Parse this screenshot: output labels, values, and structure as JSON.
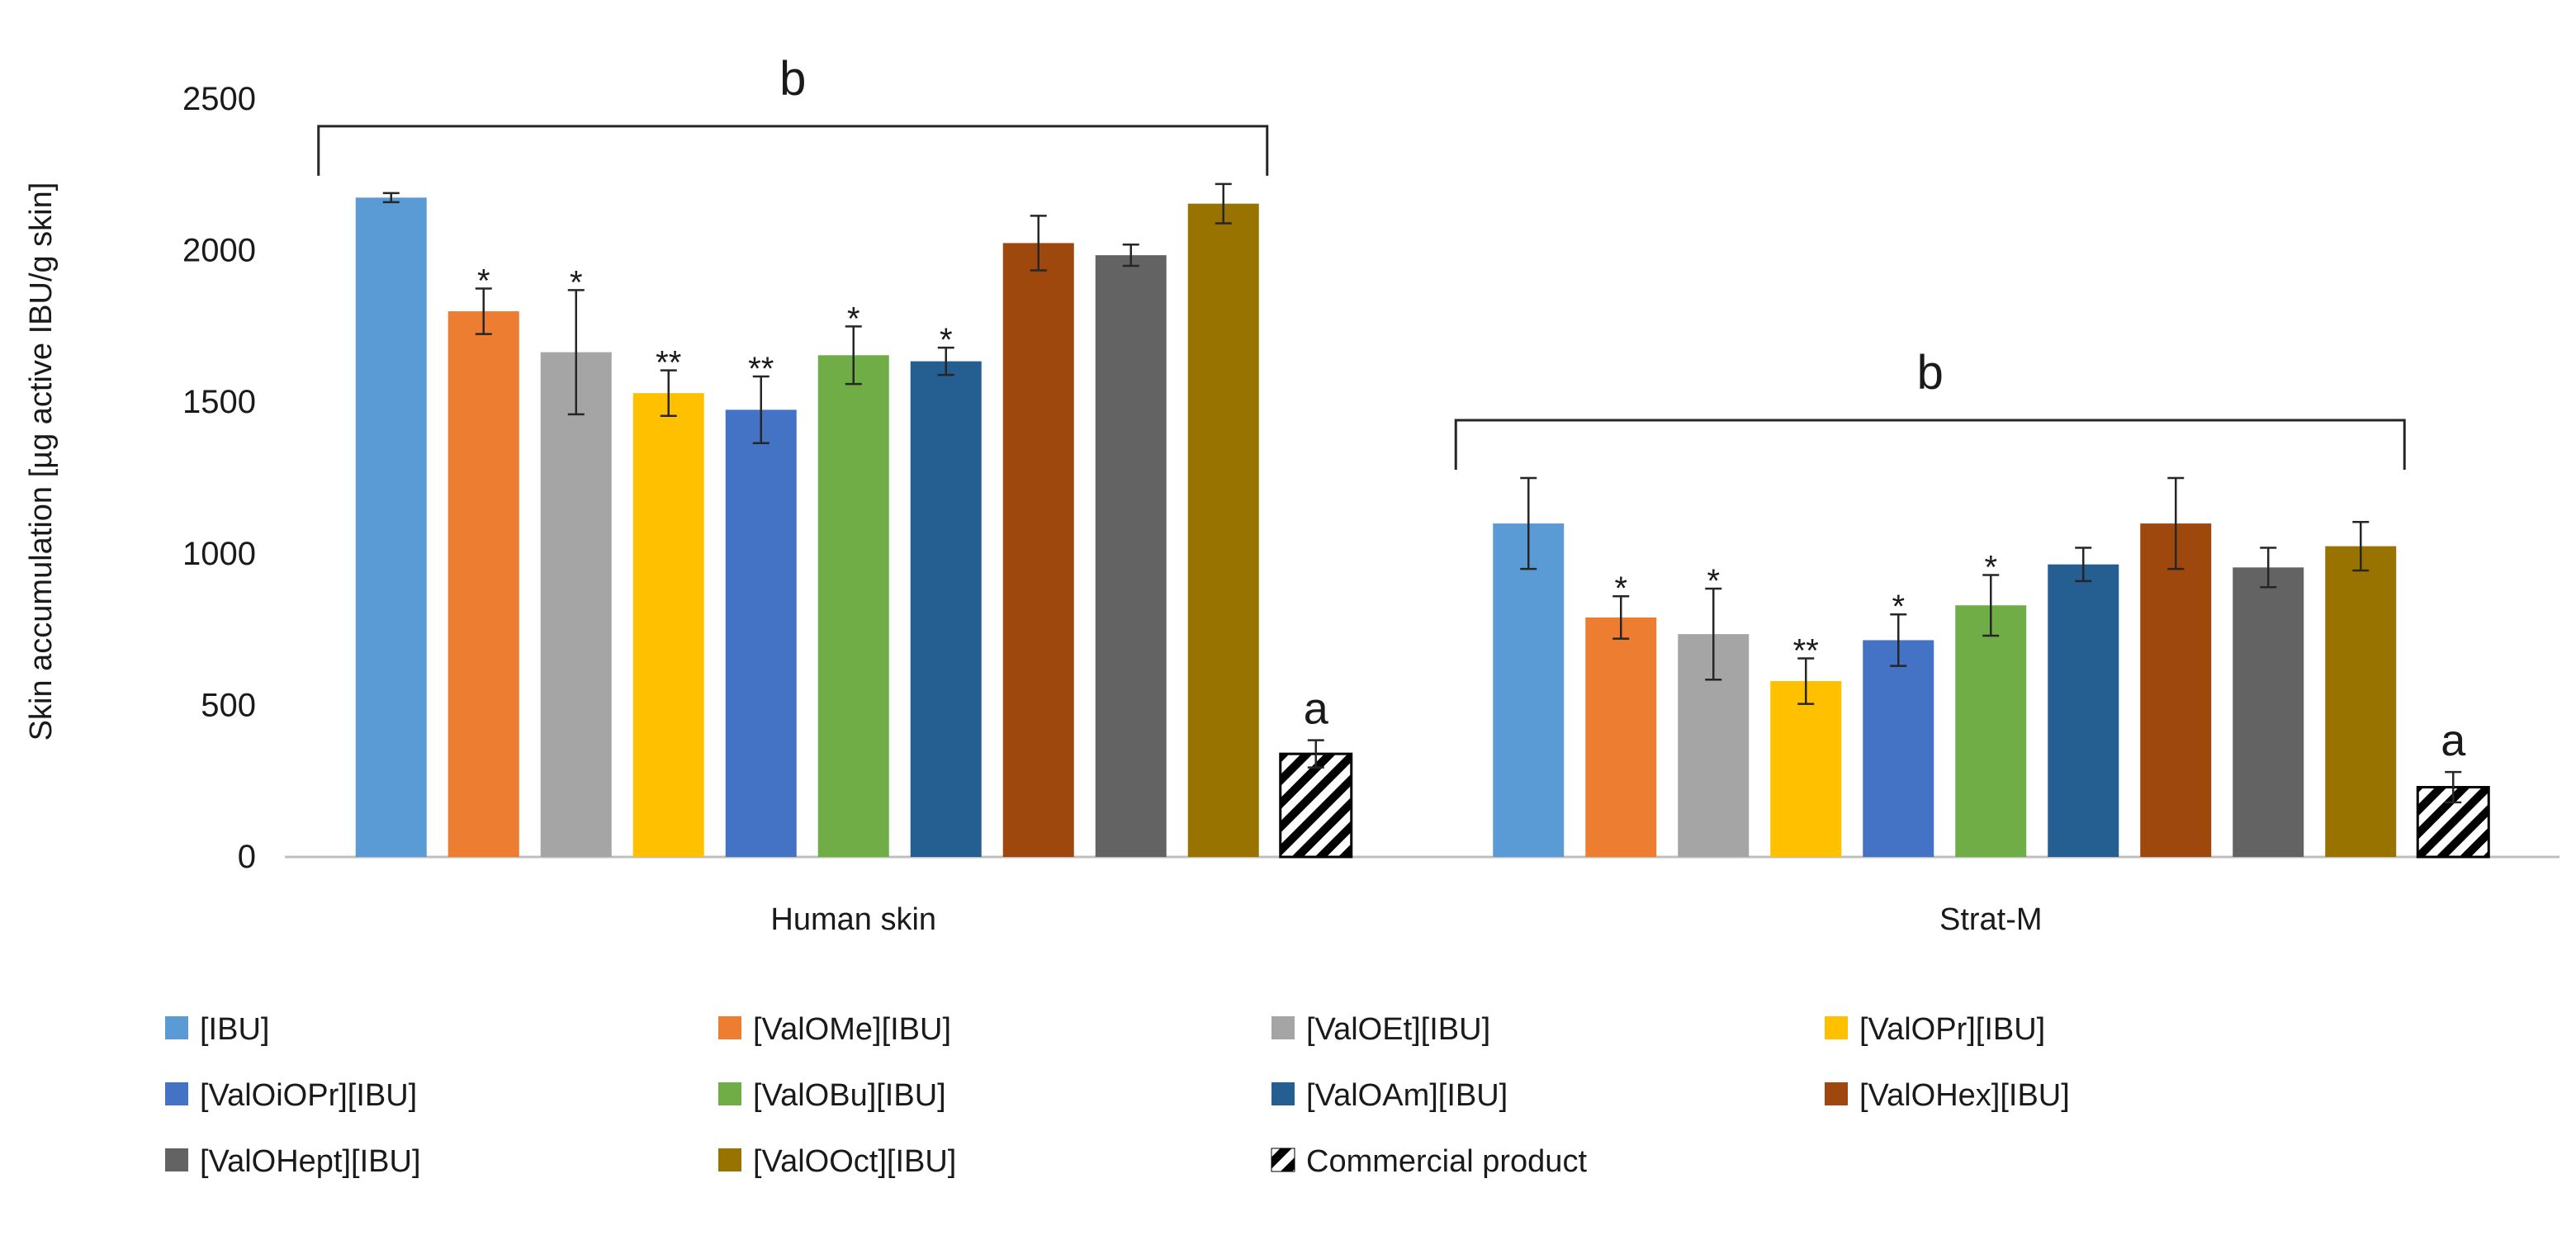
{
  "chart_data": {
    "type": "bar",
    "title": "",
    "xlabel": "",
    "ylabel": "Skin accumulation [µg active IBU/g skin]",
    "ylim": [
      0,
      2500
    ],
    "yticks": [
      0,
      500,
      1000,
      1500,
      2000,
      2500
    ],
    "grid": false,
    "categories": [
      "Human skin",
      "Strat-M"
    ],
    "series": [
      {
        "name": "[IBU]",
        "color": "#5b9bd5",
        "pattern": "none",
        "values": [
          2175,
          1100
        ],
        "errors": [
          15,
          150
        ],
        "marks": [
          "",
          ""
        ]
      },
      {
        "name": "[ValOMe][IBU]",
        "color": "#ed7d31",
        "pattern": "none",
        "values": [
          1800,
          790
        ],
        "errors": [
          75,
          70
        ],
        "marks": [
          "*",
          "*"
        ]
      },
      {
        "name": "[ValOEt][IBU]",
        "color": "#a5a5a5",
        "pattern": "none",
        "values": [
          1665,
          735
        ],
        "errors": [
          205,
          150
        ],
        "marks": [
          "*",
          "*"
        ]
      },
      {
        "name": "[ValOPr][IBU]",
        "color": "#ffc000",
        "pattern": "none",
        "values": [
          1530,
          580
        ],
        "errors": [
          75,
          75
        ],
        "marks": [
          "**",
          "**"
        ]
      },
      {
        "name": "[ValOiOPr][IBU]",
        "color": "#4472c4",
        "pattern": "none",
        "values": [
          1475,
          715
        ],
        "errors": [
          110,
          85
        ],
        "marks": [
          "**",
          "*"
        ]
      },
      {
        "name": "[ValOBu][IBU]",
        "color": "#70ad47",
        "pattern": "none",
        "values": [
          1655,
          830
        ],
        "errors": [
          95,
          100
        ],
        "marks": [
          "*",
          "*"
        ]
      },
      {
        "name": "[ValOAm][IBU]",
        "color": "#255e91",
        "pattern": "none",
        "values": [
          1635,
          965
        ],
        "errors": [
          45,
          55
        ],
        "marks": [
          "*",
          ""
        ]
      },
      {
        "name": "[ValOHex][IBU]",
        "color": "#9e480e",
        "pattern": "none",
        "values": [
          2025,
          1100
        ],
        "errors": [
          90,
          150
        ],
        "marks": [
          "",
          ""
        ]
      },
      {
        "name": "[ValOHept][IBU]",
        "color": "#636363",
        "pattern": "none",
        "values": [
          1985,
          955
        ],
        "errors": [
          35,
          65
        ],
        "marks": [
          "",
          ""
        ]
      },
      {
        "name": "[ValOOct][IBU]",
        "color": "#997300",
        "pattern": "none",
        "values": [
          2155,
          1025
        ],
        "errors": [
          65,
          80
        ],
        "marks": [
          "",
          ""
        ]
      },
      {
        "name": "Commercial product",
        "color": "#000000",
        "pattern": "hatch",
        "values": [
          340,
          230
        ],
        "errors": [
          45,
          50
        ],
        "marks": [
          "a",
          "a"
        ]
      }
    ],
    "group_brackets": [
      {
        "group": "Human skin",
        "label": "b"
      },
      {
        "group": "Strat-M",
        "label": "b"
      }
    ],
    "legend_position": "bottom"
  }
}
